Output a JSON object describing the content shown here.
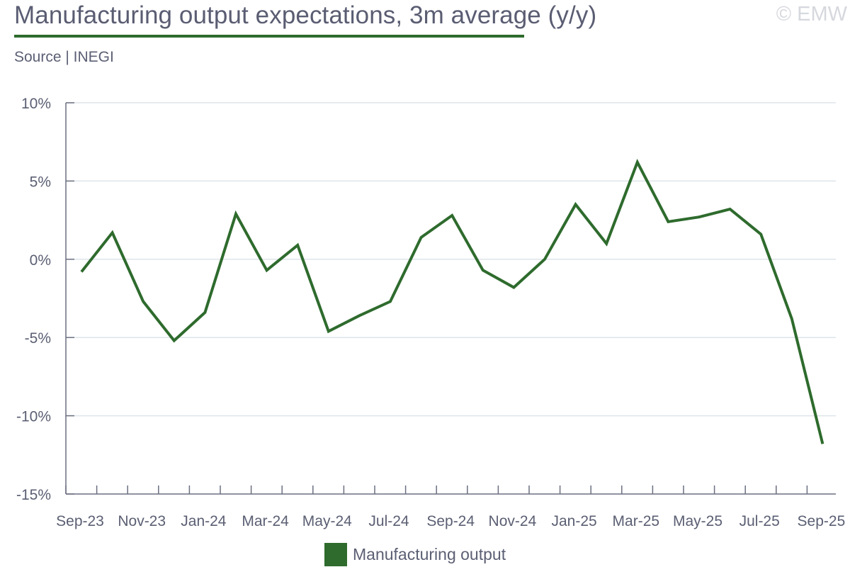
{
  "header": {
    "title": "Manufacturing output expectations, 3m average (y/y)",
    "source": "Source | INEGI",
    "watermark": "© EMW"
  },
  "colors": {
    "series": "#2e6b2d",
    "axis": "#6b6f80",
    "grid": "#dde4ea",
    "text": "#5b5f73"
  },
  "legend": {
    "label": "Manufacturing output"
  },
  "chart_data": {
    "type": "line",
    "title": "Manufacturing output expectations, 3m average (y/y)",
    "xlabel": "",
    "ylabel": "",
    "ylim": [
      -15,
      10
    ],
    "yticks": [
      10,
      5,
      0,
      -5,
      -10,
      -15
    ],
    "ytick_labels": [
      "10%",
      "5%",
      "0%",
      "-5%",
      "-10%",
      "-15%"
    ],
    "grid": true,
    "legend_position": "bottom",
    "x": [
      "Sep-23",
      "Oct-23",
      "Nov-23",
      "Dec-23",
      "Jan-24",
      "Feb-24",
      "Mar-24",
      "Apr-24",
      "May-24",
      "Jun-24",
      "Jul-24",
      "Aug-24",
      "Sep-24",
      "Oct-24",
      "Nov-24",
      "Dec-24",
      "Jan-25",
      "Feb-25",
      "Mar-25",
      "Apr-25",
      "May-25",
      "Jun-25",
      "Jul-25",
      "Aug-25",
      "Sep-25"
    ],
    "xtick_labels": [
      "Sep-23",
      "Nov-23",
      "Jan-24",
      "Mar-24",
      "May-24",
      "Jul-24",
      "Sep-24",
      "Nov-24",
      "Jan-25",
      "Mar-25",
      "May-25",
      "Jul-25",
      "Sep-25"
    ],
    "series": [
      {
        "name": "Manufacturing output",
        "values": [
          -0.8,
          1.7,
          -2.7,
          -5.2,
          -3.4,
          2.9,
          -0.7,
          0.9,
          -4.6,
          -3.6,
          -2.7,
          1.4,
          2.8,
          -0.7,
          -1.8,
          0.0,
          3.5,
          1.0,
          6.2,
          2.4,
          2.7,
          3.2,
          1.6,
          -3.8,
          -11.8
        ]
      }
    ]
  }
}
